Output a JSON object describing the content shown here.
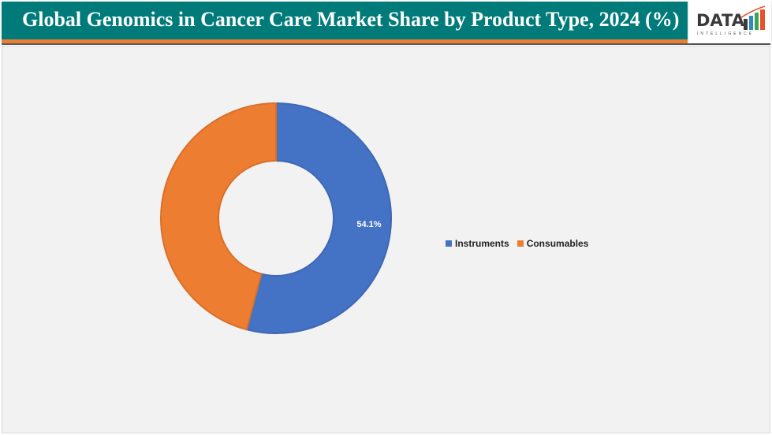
{
  "header": {
    "title": "Global Genomics in Cancer Care Market Share by Product Type, 2024 (%)",
    "logo_text": "DATA",
    "logo_subtext": "INTELLIGENCE"
  },
  "colors": {
    "header_bg": "#007b7a",
    "accent_bar": "#ed7d31",
    "instruments": "#4472c4",
    "consumables": "#ed7d31",
    "plot_bg": "#f2f2f2"
  },
  "legend": {
    "items": [
      {
        "label": "Instruments",
        "color": "#4472c4"
      },
      {
        "label": "Consumables",
        "color": "#ed7d31"
      }
    ]
  },
  "labels": {
    "instruments_value": "54.1%"
  },
  "chart_data": {
    "type": "pie",
    "subtype": "donut",
    "title": "Global Genomics in Cancer Care Market Share by Product Type, 2024 (%)",
    "categories": [
      "Instruments",
      "Consumables"
    ],
    "values": [
      54.1,
      45.9
    ],
    "data_labels": [
      "54.1%",
      ""
    ],
    "legend_position": "right",
    "colors": [
      "#4472c4",
      "#ed7d31"
    ]
  }
}
